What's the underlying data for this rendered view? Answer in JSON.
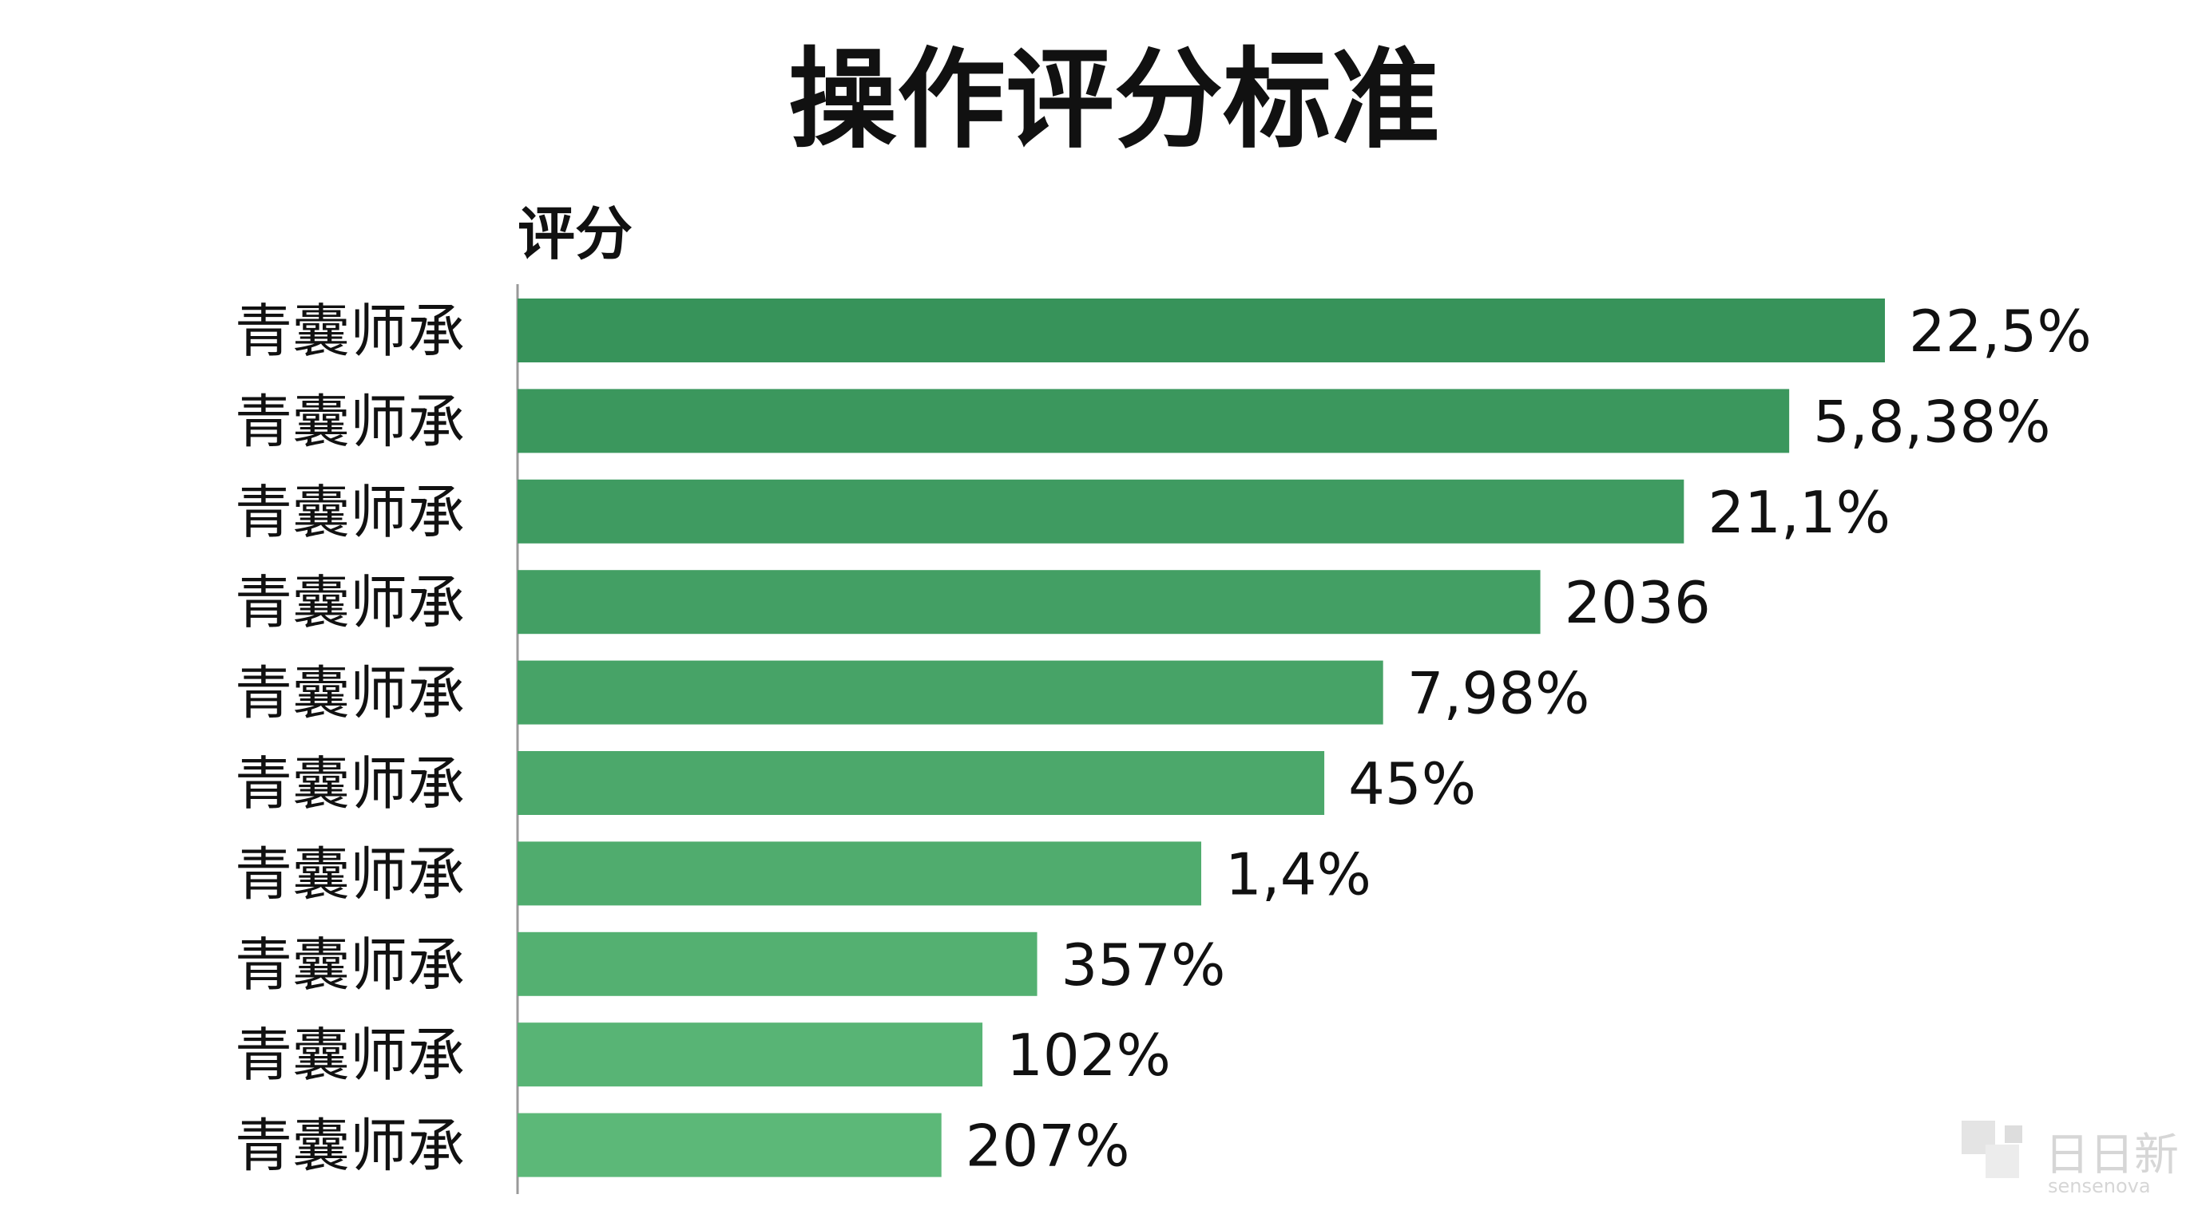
{
  "chart_data": {
    "type": "bar",
    "orientation": "horizontal",
    "title": "操作评分标准",
    "ylabel": "评分",
    "categories": [
      "青囊师承",
      "青囊师承",
      "青囊师承",
      "青囊师承",
      "青囊师承",
      "青囊师承",
      "青囊师承",
      "青囊师承",
      "青囊师承",
      "青囊师承"
    ],
    "values": [
      100,
      93,
      85.3,
      74.8,
      63.3,
      59,
      50,
      38,
      34,
      31
    ],
    "value_labels": [
      "22,5%",
      "5,8,38%",
      "21,1%",
      "2036",
      "7,98%",
      "45%",
      "1,4%",
      "357%",
      "102%",
      "207%"
    ],
    "xlim": [
      0,
      100
    ],
    "grid": false,
    "legend": "none",
    "colors": {
      "bar_top": "#37935a",
      "bar_bottom": "#5cb878",
      "axis": "#999999"
    }
  },
  "watermark": {
    "text": "日日新",
    "sub": "sensenova"
  }
}
